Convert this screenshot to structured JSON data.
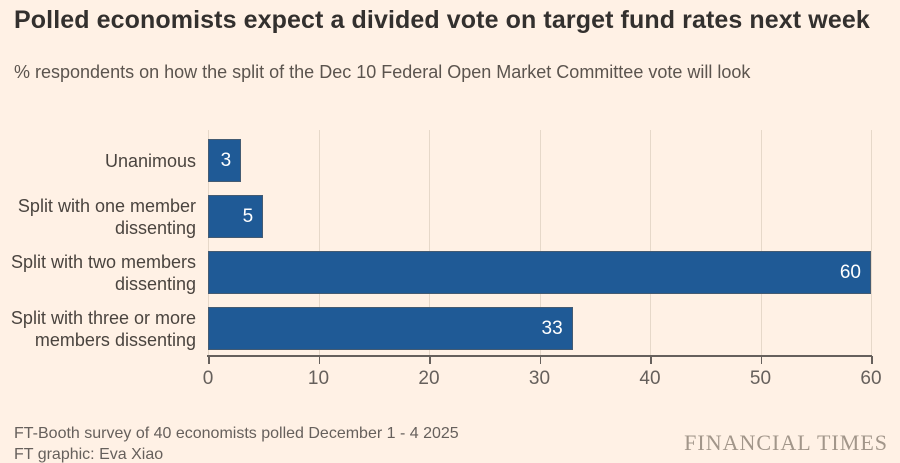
{
  "title": "Polled economists expect a divided vote on target fund rates next week",
  "subtitle": "% respondents on how the split of the Dec 10 Federal Open Market Committee vote will look",
  "chart_data": {
    "type": "bar",
    "orientation": "horizontal",
    "title": "Polled economists expect a divided vote on target fund rates next week",
    "subtitle": "% respondents on how the split of the Dec 10 Federal Open Market Committee vote will look",
    "categories": [
      "Unanimous",
      "Split with one member dissenting",
      "Split with two members dissenting",
      "Split with three or more members dissenting"
    ],
    "label_lines": [
      [
        "Unanimous"
      ],
      [
        "Split with one member",
        "dissenting"
      ],
      [
        "Split with two members",
        "dissenting"
      ],
      [
        "Split with three or more",
        "members dissenting"
      ]
    ],
    "values": [
      3,
      5,
      60,
      33
    ],
    "value_labels": [
      "3",
      "5",
      "60",
      "33"
    ],
    "xlim": [
      0,
      60
    ],
    "xticks": [
      0,
      10,
      20,
      30,
      40,
      50,
      60
    ],
    "grid": true,
    "legend": false,
    "bar_color": "#1f5a96",
    "value_label_color": "#ffffff"
  },
  "footer": {
    "source_line": "FT-Booth survey of 40 economists polled December 1 - 4 2025",
    "credit_line": "FT graphic: Eva Xiao",
    "brand": "FINANCIAL TIMES"
  },
  "colors": {
    "background": "#fff1e5",
    "bar": "#1f5a96",
    "grid": "#e6d8c9",
    "axis": "#66605c",
    "title_text": "#33302e",
    "muted_text": "#66605c",
    "brand_text": "#a2968a"
  }
}
